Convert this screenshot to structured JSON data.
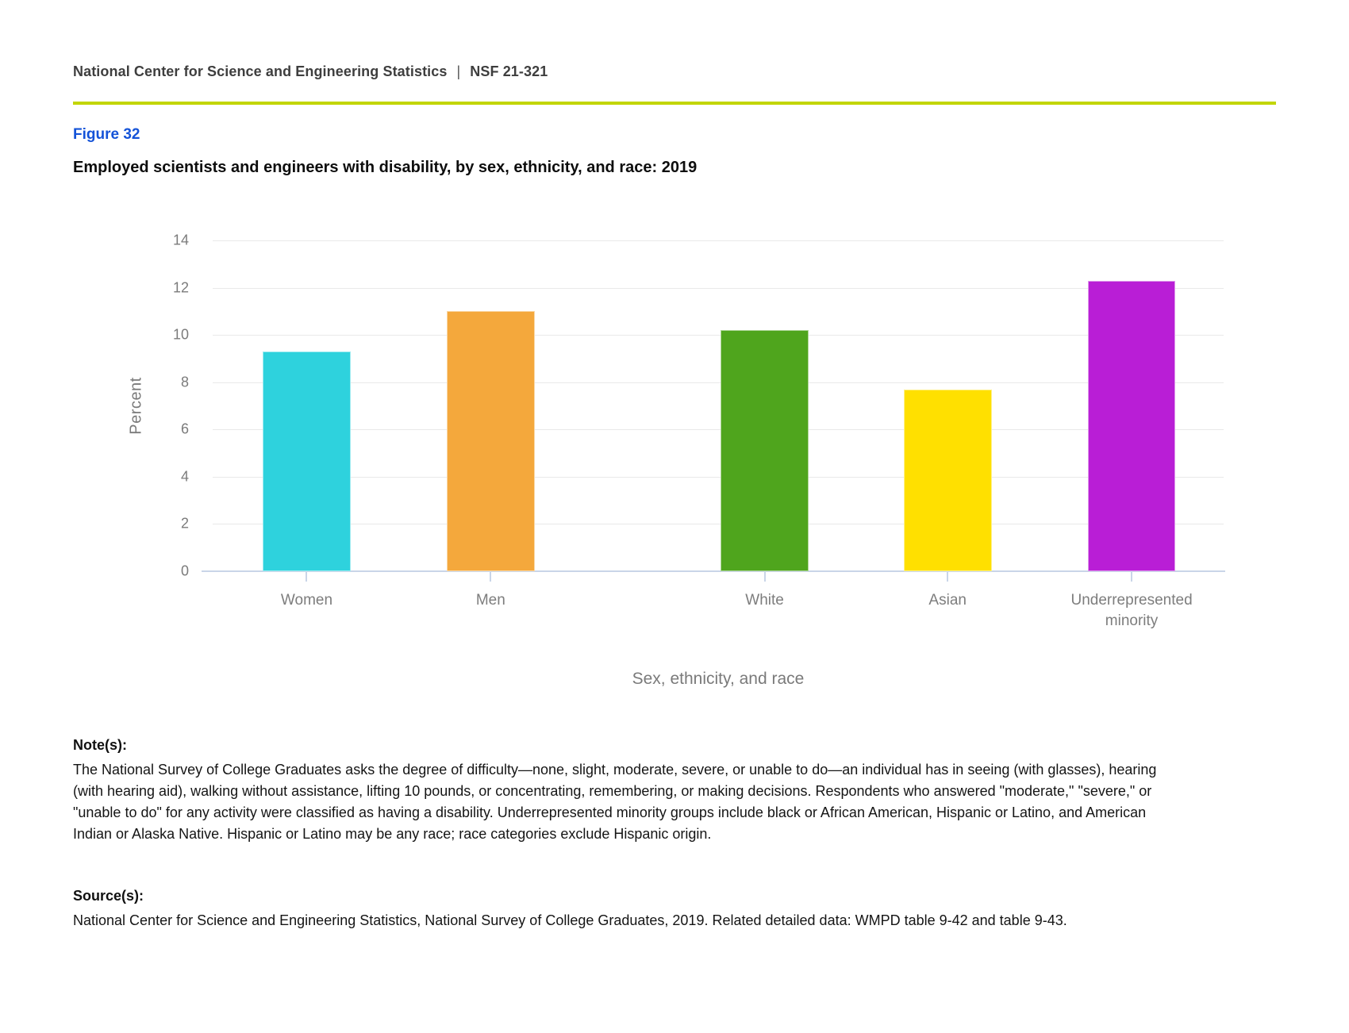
{
  "page": {
    "header": {
      "org": "National Center for Science and Engineering Statistics",
      "separator": "|",
      "report": "NSF 21-321"
    },
    "figure_label": "Figure 32",
    "title": "Employed scientists and engineers with disability, by sex, ethnicity, and race: 2019",
    "notes": {
      "label": "Note(s):",
      "text": "The National Survey of College Graduates asks the degree of difficulty—none, slight, moderate, severe, or unable to do—an individual has in seeing (with glasses), hearing (with hearing aid), walking without assistance, lifting 10 pounds, or concentrating, remembering, or making decisions. Respondents who answered \"moderate,\" \"severe,\" or \"unable to do\" for any activity were classified as having a disability. Underrepresented minority groups include black or African American, Hispanic or Latino, and American Indian or Alaska Native. Hispanic or Latino may be any race; race categories exclude Hispanic origin."
    },
    "sources": {
      "label": "Source(s):",
      "text": "National Center for Science and Engineering Statistics, National Survey of College Graduates, 2019. Related detailed data: WMPD table 9-42 and table 9-43."
    }
  },
  "colors": {
    "divider": "#c2d500",
    "figure_label_blue": "#1453d8",
    "gridline": "#e9e9e9",
    "axis_baseline": "#c9d5e8",
    "axis_text": "#7b7b7b"
  },
  "chart_data": {
    "type": "bar",
    "title": "Employed scientists and engineers with disability, by sex, ethnicity, and race: 2019",
    "categories": [
      "Women",
      "Men",
      "White",
      "Asian",
      "Underrepresented minority"
    ],
    "values": [
      9.3,
      11.0,
      10.2,
      7.7,
      12.3
    ],
    "bar_colors": [
      "#2ed2dd",
      "#f4a83c",
      "#4fa51d",
      "#ffe000",
      "#b91ed6"
    ],
    "xlabel": "Sex, ethnicity, and race",
    "ylabel": "Percent",
    "ylim": [
      0,
      14
    ],
    "yticks": [
      0,
      2,
      4,
      6,
      8,
      10,
      12,
      14
    ],
    "grid": true,
    "legend": false,
    "bar_center_pct": [
      9.3,
      27.5,
      54.6,
      72.7,
      90.9
    ],
    "bar_width_pct": 8.7
  }
}
